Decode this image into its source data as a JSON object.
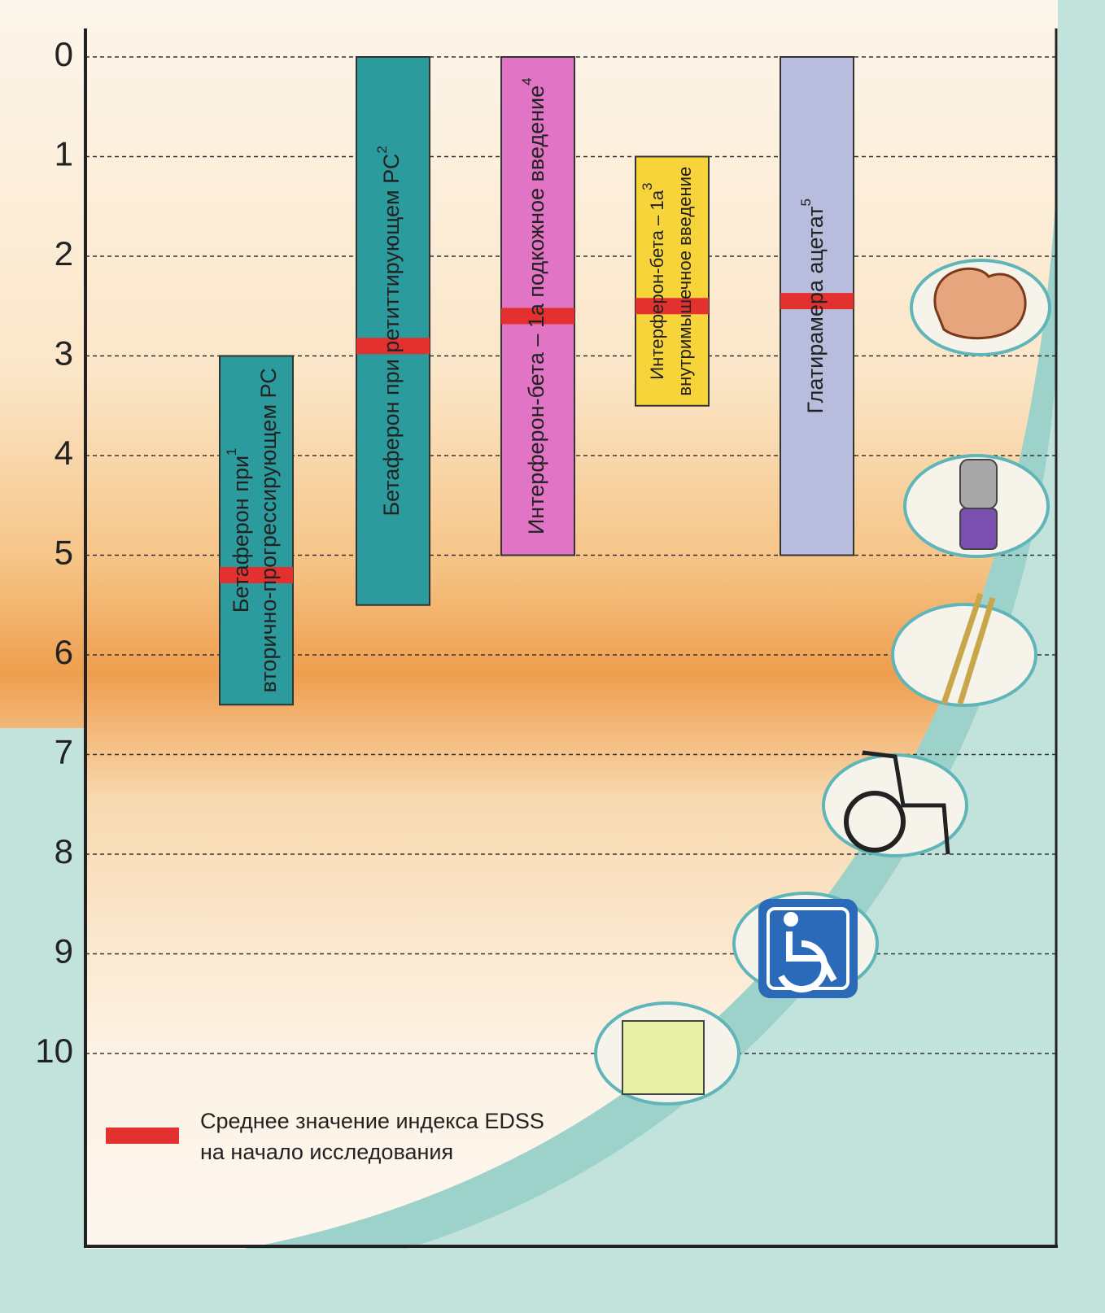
{
  "chart_data": {
    "type": "range-bar",
    "ylim": [
      0,
      11.9
    ],
    "yticks": [
      0,
      1,
      2,
      3,
      4,
      5,
      6,
      7,
      8,
      9,
      10
    ],
    "grid": true,
    "inverted": true,
    "mean_color": "#e2312f",
    "bars": [
      {
        "label_lines": [
          "Бетаферон при",
          "вторично-прогрессирующем РС"
        ],
        "note": "1",
        "color": "#2b9b9e",
        "range": [
          3,
          6.5
        ],
        "mean": 5.2
      },
      {
        "label_lines": [
          "Бетаферон при ретиттирующем РС"
        ],
        "note": "2",
        "color": "#2b9b9e",
        "range": [
          0,
          5.5
        ],
        "mean": 2.9
      },
      {
        "label_lines": [
          "Интерферон-бета – 1а подкожное введение"
        ],
        "note": "4",
        "color": "#e274c6",
        "range": [
          0,
          5
        ],
        "mean": 2.6
      },
      {
        "label_lines": [
          "Интерферон-бета – 1а",
          "внутримышечное введение"
        ],
        "note": "3",
        "color": "#f6d43a",
        "range": [
          1,
          3.5
        ],
        "mean": 2.5
      },
      {
        "label_lines": [
          "Глатирамера ацетат"
        ],
        "note": "5",
        "color": "#b9bddd",
        "range": [
          0,
          5
        ],
        "mean": 2.45
      }
    ],
    "legend": {
      "label_lines": [
        "Среднее значение индекса EDSS",
        "на начало исследования"
      ]
    }
  }
}
